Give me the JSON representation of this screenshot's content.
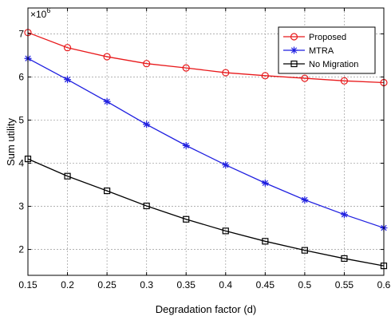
{
  "chart_data": {
    "type": "line",
    "title": "",
    "xlabel": "Degradation factor (d)",
    "ylabel": "Sum utility",
    "y_multiplier_label": "×10^6",
    "y_multiplier_base": "×10",
    "y_multiplier_exp": "6",
    "x": [
      0.15,
      0.2,
      0.25,
      0.3,
      0.35,
      0.4,
      0.45,
      0.5,
      0.55,
      0.6
    ],
    "xlim": [
      0.15,
      0.6
    ],
    "ylim": [
      1.4,
      7.6
    ],
    "xticks": [
      0.15,
      0.2,
      0.25,
      0.3,
      0.35,
      0.4,
      0.45,
      0.5,
      0.55,
      0.6
    ],
    "xtick_labels": [
      "0.15",
      "0.2",
      "0.25",
      "0.3",
      "0.35",
      "0.4",
      "0.45",
      "0.5",
      "0.55",
      "0.6"
    ],
    "yticks": [
      2,
      3,
      4,
      5,
      6,
      7
    ],
    "ytick_labels": [
      "2",
      "3",
      "4",
      "5",
      "6",
      "7"
    ],
    "grid": true,
    "legend_position": "top-right",
    "series": [
      {
        "name": "Proposed",
        "color": "#e8191b",
        "marker": "circle",
        "values": [
          7.03,
          6.68,
          6.47,
          6.31,
          6.21,
          6.1,
          6.03,
          5.97,
          5.91,
          5.87
        ]
      },
      {
        "name": "MTRA",
        "color": "#1f1fe0",
        "marker": "asterisk",
        "values": [
          6.43,
          5.94,
          5.43,
          4.9,
          4.41,
          3.96,
          3.54,
          3.15,
          2.81,
          2.5
        ]
      },
      {
        "name": "No Migration",
        "color": "#000000",
        "marker": "square",
        "values": [
          4.1,
          3.7,
          3.36,
          3.01,
          2.7,
          2.43,
          2.19,
          1.98,
          1.79,
          1.62
        ]
      }
    ]
  }
}
